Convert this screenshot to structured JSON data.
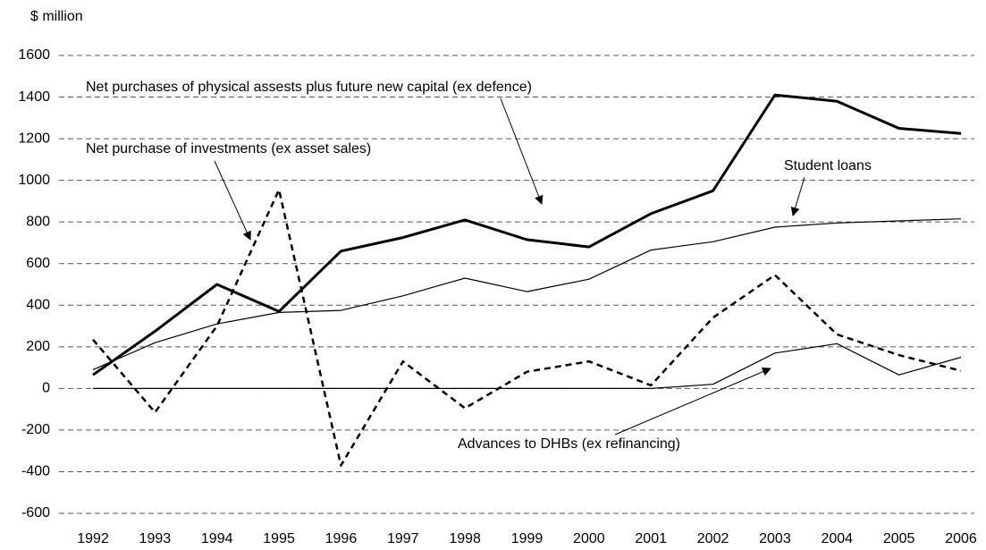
{
  "chart_data": {
    "type": "line",
    "y_label": "$ million",
    "categories": [
      "1992",
      "1993",
      "1994",
      "1995",
      "1996",
      "1997",
      "1998",
      "1999",
      "2000",
      "2001",
      "2002",
      "2003",
      "2004",
      "2005",
      "2006"
    ],
    "ylim": [
      -600,
      1600
    ],
    "yticks": [
      -600,
      -400,
      -200,
      0,
      200,
      400,
      600,
      800,
      1000,
      1200,
      1400,
      1600
    ],
    "grid": true,
    "series": [
      {
        "name": "Net purchases of physical assests plus future new capital (ex defence)",
        "color": "#000000",
        "width": 3,
        "dashed": false,
        "values": [
          65,
          275,
          500,
          370,
          660,
          725,
          810,
          715,
          680,
          840,
          950,
          1410,
          1380,
          1250,
          1225
        ]
      },
      {
        "name": "Net purchase of investments (ex asset sales)",
        "color": "#000000",
        "width": 2.5,
        "dashed": true,
        "values": [
          235,
          -115,
          300,
          955,
          -370,
          130,
          -95,
          80,
          130,
          15,
          340,
          545,
          260,
          160,
          85
        ]
      },
      {
        "name": "Student loans",
        "color": "#000000",
        "width": 1.2,
        "dashed": false,
        "values": [
          90,
          220,
          310,
          365,
          375,
          445,
          530,
          465,
          525,
          665,
          705,
          775,
          795,
          805,
          815
        ]
      },
      {
        "name": "Advances to DHBs (ex refinancing)",
        "color": "#000000",
        "width": 1.2,
        "dashed": false,
        "values": [
          0,
          0,
          0,
          0,
          0,
          0,
          0,
          0,
          0,
          0,
          20,
          170,
          215,
          65,
          150
        ]
      }
    ]
  }
}
